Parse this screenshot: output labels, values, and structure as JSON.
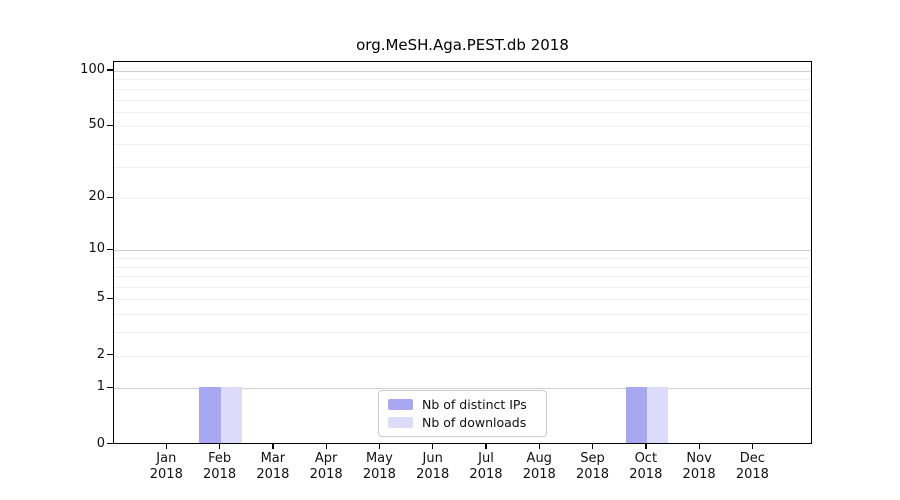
{
  "title": "org.MeSH.Aga.PEST.db 2018",
  "chart_data": {
    "type": "bar",
    "title": "org.MeSH.Aga.PEST.db 2018",
    "xlabel": "",
    "ylabel": "",
    "categories": [
      "Jan 2018",
      "Feb 2018",
      "Mar 2018",
      "Apr 2018",
      "May 2018",
      "Jun 2018",
      "Jul 2018",
      "Aug 2018",
      "Sep 2018",
      "Oct 2018",
      "Nov 2018",
      "Dec 2018"
    ],
    "series": [
      {
        "name": "Nb of distinct IPs",
        "color": "#a8a8f2",
        "values": [
          0,
          1,
          0,
          0,
          0,
          0,
          0,
          0,
          0,
          1,
          0,
          0
        ]
      },
      {
        "name": "Nb of downloads",
        "color": "#dcdcf9",
        "values": [
          0,
          1,
          0,
          0,
          0,
          0,
          0,
          0,
          0,
          1,
          0,
          0
        ]
      }
    ],
    "yscale": "log1p",
    "ylim": [
      0,
      112
    ],
    "yticks": [
      0,
      1,
      2,
      5,
      10,
      20,
      50,
      100
    ],
    "minor_yticks": [
      3,
      4,
      6,
      7,
      8,
      9,
      30,
      40,
      60,
      70,
      80,
      90
    ],
    "grid": "horizontal",
    "legend_position": "lower-center-inside",
    "colors": {
      "major_grid": "#d0d0d0",
      "minor_grid": "#efefef",
      "spine": "#000000",
      "background": "#ffffff"
    }
  }
}
